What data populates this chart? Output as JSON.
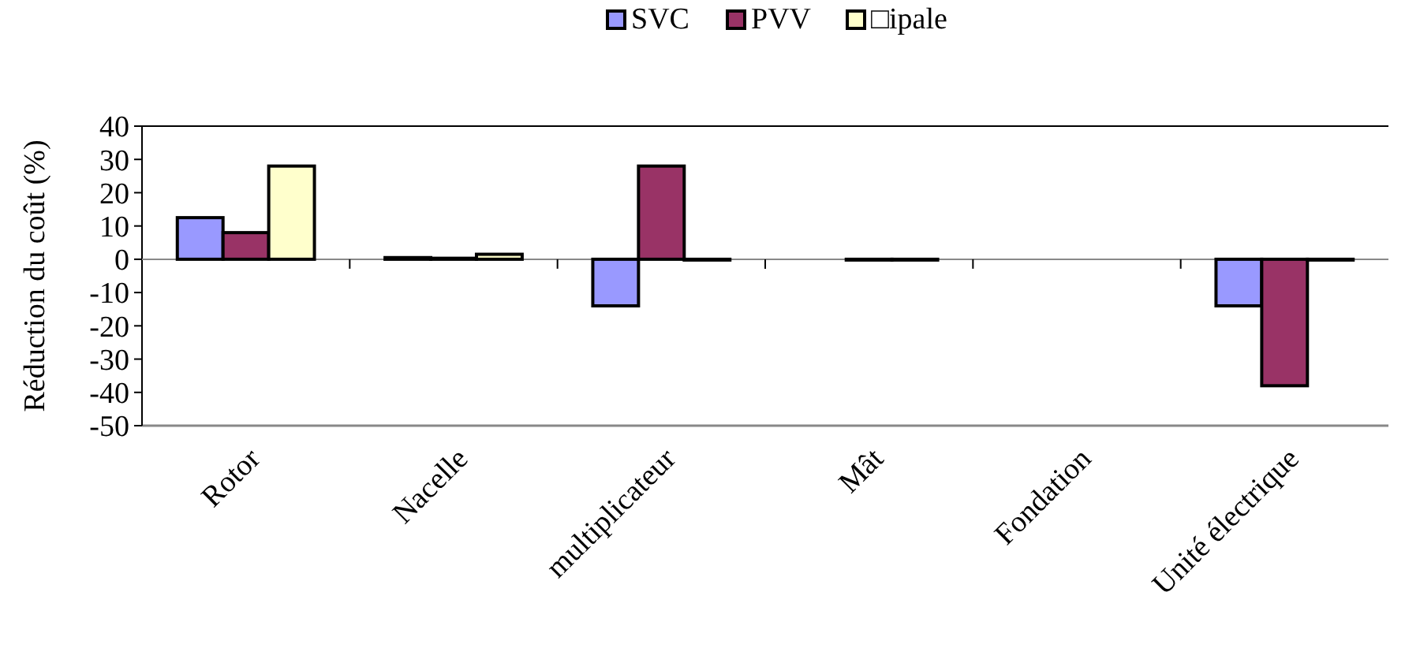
{
  "chart_data": {
    "type": "bar",
    "ylabel": "Réduction du coût (%)",
    "categories": [
      "Rotor",
      "Nacelle",
      "multiplicateur",
      "Mât",
      "Fondation",
      "Unité électrique"
    ],
    "series": [
      {
        "name": "SVC",
        "color": "#9999ff",
        "values": [
          12.5,
          0.5,
          -14,
          null,
          null,
          -14
        ]
      },
      {
        "name": "PVV",
        "color": "#993366",
        "values": [
          8,
          0.3,
          28,
          0,
          null,
          -38
        ]
      },
      {
        "name": "□ipale",
        "color": "#ffffcc",
        "values": [
          28,
          1.5,
          0,
          0,
          null,
          0
        ]
      }
    ],
    "ylim": [
      -50,
      40
    ],
    "yticks": [
      -50,
      -40,
      -30,
      -20,
      -10,
      0,
      10,
      20,
      30,
      40
    ],
    "legend": "top"
  }
}
